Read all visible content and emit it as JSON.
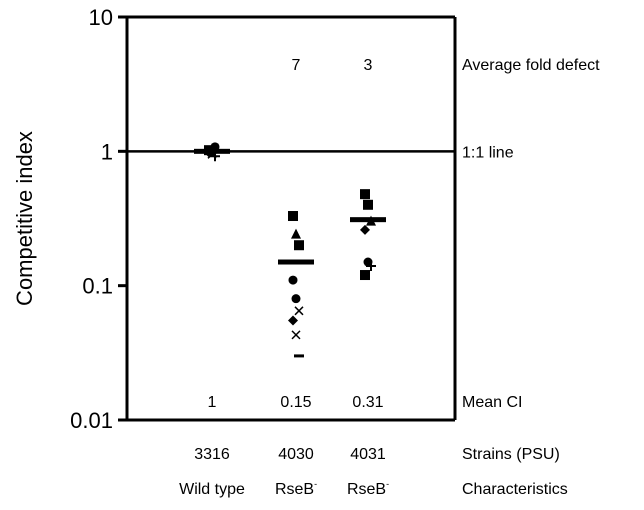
{
  "chart_data": {
    "type": "scatter",
    "ylabel": "Competitive index",
    "yscale": "log",
    "ylim": [
      0.01,
      10
    ],
    "yticks": [
      {
        "value": 10,
        "label": "10"
      },
      {
        "value": 1,
        "label": "1"
      },
      {
        "value": 0.1,
        "label": "0.1"
      },
      {
        "value": 0.01,
        "label": "0.01"
      }
    ],
    "reference_line": {
      "value": 1,
      "label": "1:1 line"
    },
    "groups": [
      {
        "strain": "3316",
        "characteristic": "Wild type",
        "characteristic_superscript": "",
        "mean_ci": 1,
        "mean_ci_label": "1",
        "fold_defect": "",
        "points": [
          {
            "marker": "square",
            "y": 1.02
          },
          {
            "marker": "triangle",
            "y": 1.03
          },
          {
            "marker": "circle",
            "y": 1.08
          },
          {
            "marker": "diamond",
            "y": 0.98
          },
          {
            "marker": "x",
            "y": 0.95
          },
          {
            "marker": "plus",
            "y": 0.92
          },
          {
            "marker": "dash",
            "y": 1.0
          }
        ]
      },
      {
        "strain": "4030",
        "characteristic": "RseB",
        "characteristic_superscript": "-",
        "mean_ci": 0.15,
        "mean_ci_label": "0.15",
        "fold_defect": "7",
        "points": [
          {
            "marker": "square",
            "y": 0.33
          },
          {
            "marker": "triangle",
            "y": 0.24
          },
          {
            "marker": "square",
            "y": 0.2
          },
          {
            "marker": "circle",
            "y": 0.11
          },
          {
            "marker": "circle",
            "y": 0.08
          },
          {
            "marker": "x",
            "y": 0.065
          },
          {
            "marker": "diamond",
            "y": 0.055
          },
          {
            "marker": "x",
            "y": 0.043
          },
          {
            "marker": "dash",
            "y": 0.03
          }
        ]
      },
      {
        "strain": "4031",
        "characteristic": "RseB",
        "characteristic_superscript": "-",
        "mean_ci": 0.31,
        "mean_ci_label": "0.31",
        "fold_defect": "3",
        "points": [
          {
            "marker": "square",
            "y": 0.48
          },
          {
            "marker": "square",
            "y": 0.4
          },
          {
            "marker": "triangle",
            "y": 0.3
          },
          {
            "marker": "diamond",
            "y": 0.26
          },
          {
            "marker": "circle",
            "y": 0.15
          },
          {
            "marker": "plus",
            "y": 0.14
          },
          {
            "marker": "square",
            "y": 0.12
          }
        ]
      }
    ],
    "row_labels": {
      "fold_defect": "Average fold defect",
      "mean_ci": "Mean CI",
      "strains": "Strains (PSU)",
      "characteristics": "Characteristics"
    }
  }
}
